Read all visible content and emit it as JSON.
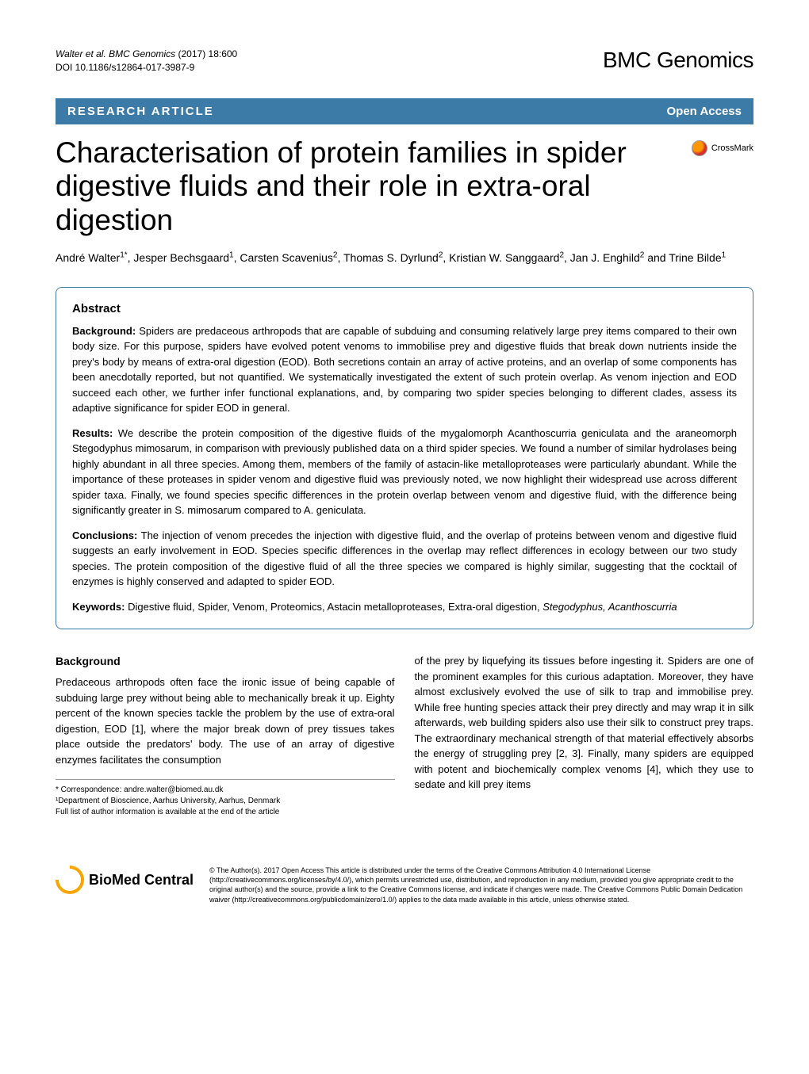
{
  "header": {
    "citation_authors": "Walter et al. BMC Genomics",
    "citation_year_vol": "(2017) 18:600",
    "doi": "DOI 10.1186/s12864-017-3987-9",
    "journal_name": "BMC Genomics"
  },
  "article_bar": {
    "type": "RESEARCH ARTICLE",
    "access": "Open Access"
  },
  "title": "Characterisation of protein families in spider digestive fluids and their role in extra-oral digestion",
  "crossmark_label": "CrossMark",
  "authors_html": "André Walter¹*, Jesper Bechsgaard¹, Carsten Scavenius², Thomas S. Dyrlund², Kristian W. Sanggaard², Jan J. Enghild² and Trine Bilde¹",
  "abstract": {
    "heading": "Abstract",
    "background_label": "Background:",
    "background_text": " Spiders are predaceous arthropods that are capable of subduing and consuming relatively large prey items compared to their own body size. For this purpose, spiders have evolved potent venoms to immobilise prey and digestive fluids that break down nutrients inside the prey's body by means of extra-oral digestion (EOD). Both secretions contain an array of active proteins, and an overlap of some components has been anecdotally reported, but not quantified. We systematically investigated the extent of such protein overlap. As venom injection and EOD succeed each other, we further infer functional explanations, and, by comparing two spider species belonging to different clades, assess its adaptive significance for spider EOD in general.",
    "results_label": "Results:",
    "results_text": " We describe the protein composition of the digestive fluids of the mygalomorph Acanthoscurria geniculata and the araneomorph Stegodyphus mimosarum, in comparison with previously published data on a third spider species. We found a number of similar hydrolases being highly abundant in all three species. Among them, members of the family of astacin-like metalloproteases were particularly abundant. While the importance of these proteases in spider venom and digestive fluid was previously noted, we now highlight their widespread use across different spider taxa. Finally, we found species specific differences in the protein overlap between venom and digestive fluid, with the difference being significantly greater in S. mimosarum compared to A. geniculata.",
    "conclusions_label": "Conclusions:",
    "conclusions_text": " The injection of venom precedes the injection with digestive fluid, and the overlap of proteins between venom and digestive fluid suggests an early involvement in EOD. Species specific differences in the overlap may reflect differences in ecology between our two study species. The protein composition of the digestive fluid of all the three species we compared is highly similar, suggesting that the cocktail of enzymes is highly conserved and adapted to spider EOD.",
    "keywords_label": "Keywords:",
    "keywords_text": " Digestive fluid, Spider, Venom, Proteomics, Astacin metalloproteases, Extra-oral digestion, ",
    "keywords_italic": "Stegodyphus, Acanthoscurria"
  },
  "body": {
    "background_heading": "Background",
    "col1_text": "Predaceous arthropods often face the ironic issue of being capable of subduing large prey without being able to mechanically break it up. Eighty percent of the known species tackle the problem by the use of extra-oral digestion, EOD [1], where the major break down of prey tissues takes place outside the predators' body. The use of an array of digestive enzymes facilitates the consumption",
    "col2_text": "of the prey by liquefying its tissues before ingesting it. Spiders are one of the prominent examples for this curious adaptation. Moreover, they have almost exclusively evolved the use of silk to trap and immobilise prey. While free hunting species attack their prey directly and may wrap it in silk afterwards, web building spiders also use their silk to construct prey traps. The extraordinary mechanical strength of that material effectively absorbs the energy of struggling prey [2, 3]. Finally, many spiders are equipped with potent and biochemically complex venoms [4], which they use to sedate and kill prey items"
  },
  "correspondence": {
    "line1": "* Correspondence: andre.walter@biomed.au.dk",
    "line2": "¹Department of Bioscience, Aarhus University, Aarhus, Denmark",
    "line3": "Full list of author information is available at the end of the article"
  },
  "footer": {
    "logo_text_bold": "BioMed",
    "logo_text_rest": " Central",
    "license_text": "© The Author(s). 2017 Open Access This article is distributed under the terms of the Creative Commons Attribution 4.0 International License (http://creativecommons.org/licenses/by/4.0/), which permits unrestricted use, distribution, and reproduction in any medium, provided you give appropriate credit to the original author(s) and the source, provide a link to the Creative Commons license, and indicate if changes were made. The Creative Commons Public Domain Dedication waiver (http://creativecommons.org/publicdomain/zero/1.0/) applies to the data made available in this article, unless otherwise stated."
  },
  "colors": {
    "bar_bg": "#3c7aa8",
    "border": "#3c7aa8",
    "bmc_orange": "#f7a600"
  }
}
